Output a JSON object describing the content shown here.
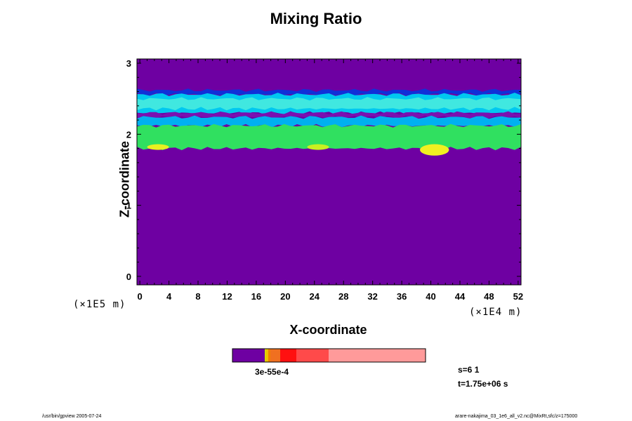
{
  "chart_data": {
    "type": "heatmap",
    "title": "Mixing Ratio",
    "xlabel": "X-coordinate",
    "ylabel": "Z-coordinate",
    "x_unit": "(×1E4 m)",
    "y_unit": "(×1E5 m)",
    "xlim": [
      -0.4,
      52.4
    ],
    "ylim": [
      -0.12,
      3.06
    ],
    "x_ticks": [
      "0",
      "4",
      "8",
      "12",
      "16",
      "20",
      "24",
      "28",
      "32",
      "36",
      "40",
      "44",
      "48",
      "52"
    ],
    "y_ticks": [
      "0",
      "1",
      "2",
      "3"
    ],
    "background_color": "#6e00a2",
    "colorbar_label": "3e-55e-4",
    "layers": [
      {
        "band": "upper-dark-blue",
        "z": [
          2.56,
          2.62
        ],
        "color": "#1030d8"
      },
      {
        "band": "upper-light-blue",
        "z": [
          2.3,
          2.56
        ],
        "color": "#00c8f0"
      },
      {
        "band": "upper-cyan",
        "z": [
          2.36,
          2.5
        ],
        "color": "#40e8e0"
      },
      {
        "band": "gap-purple",
        "z": [
          2.24,
          2.3
        ],
        "color": "#7a10b0"
      },
      {
        "band": "mid-blue",
        "z": [
          2.12,
          2.24
        ],
        "color": "#00b0f0"
      },
      {
        "band": "lower-green",
        "z": [
          1.8,
          2.12
        ],
        "color": "#30e060"
      },
      {
        "band": "lower-yellow-patch-1",
        "x": [
          1,
          4
        ],
        "z": [
          1.78,
          1.86
        ],
        "color": "#e8f020"
      },
      {
        "band": "lower-yellow-patch-2",
        "x": [
          23,
          26
        ],
        "z": [
          1.78,
          1.86
        ],
        "color": "#c8f020"
      },
      {
        "band": "lower-yellow-patch-3",
        "x": [
          38.5,
          42.5
        ],
        "z": [
          1.7,
          1.86
        ],
        "color": "#f0f020"
      }
    ],
    "colorbar": [
      {
        "color": "#6e00a2",
        "width": 46
      },
      {
        "color": "#d8d800",
        "width": 2
      },
      {
        "color": "#f0c000",
        "width": 3
      },
      {
        "color": "#f08000",
        "width": 3
      },
      {
        "color": "#f07020",
        "width": 14
      },
      {
        "color": "#ff1010",
        "width": 23
      },
      {
        "color": "#ff4a4a",
        "width": 46
      },
      {
        "color": "#ff9a9a",
        "width": 138
      }
    ]
  },
  "info": {
    "s_line": "s=6 1",
    "t_line": "t=1.75e+06 s"
  },
  "footer": {
    "left": "/usr/bin/gpview 2005-07-24",
    "right": "arare-nakajima_03_1e6_all_v2.nc@MixRt,sfc/z=175000"
  }
}
